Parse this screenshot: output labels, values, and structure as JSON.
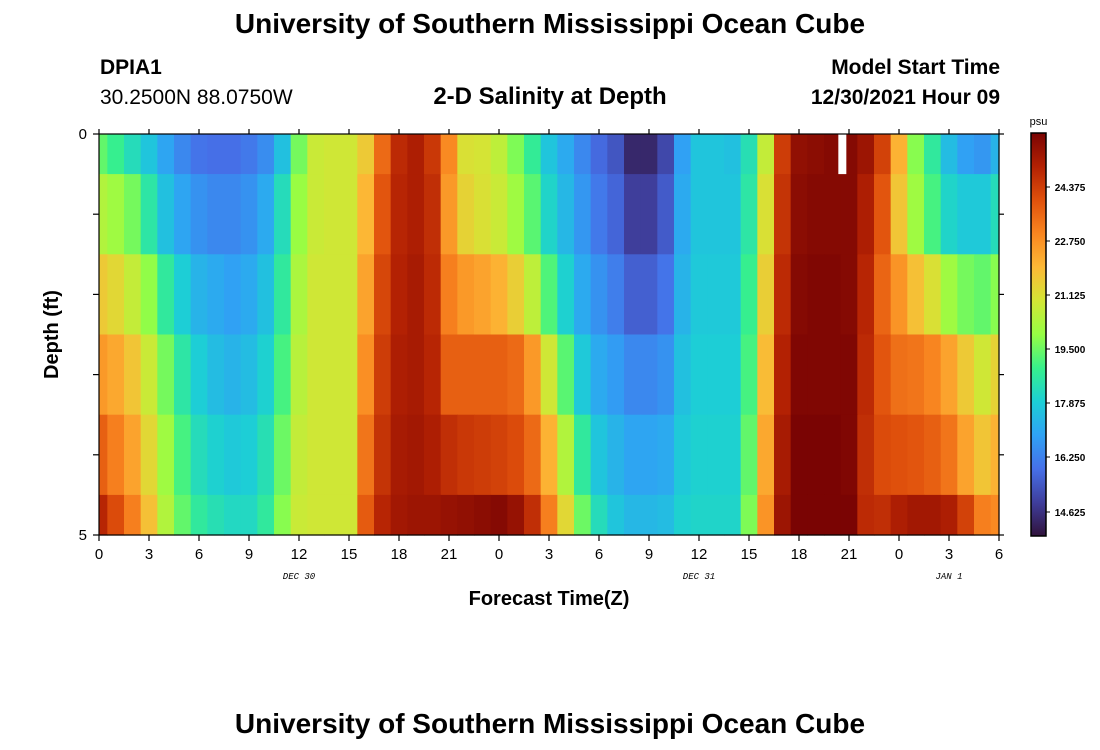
{
  "header": {
    "title": "University of Southern Mississippi Ocean Cube",
    "station_id": "DPIA1",
    "coords": "30.2500N  88.0750W",
    "model_start_label": "Model Start Time",
    "model_start_value": "12/30/2021 Hour 09"
  },
  "footer": {
    "title": "University of Southern Mississippi Ocean Cube"
  },
  "chart_data": {
    "type": "heatmap",
    "title": "2-D Salinity at Depth",
    "xlabel": "Forecast Time(Z)",
    "ylabel": "Depth (ft)",
    "x_tick_labels": [
      "0",
      "3",
      "6",
      "9",
      "12",
      "15",
      "18",
      "21",
      "0",
      "3",
      "6",
      "9",
      "12",
      "15",
      "18",
      "21",
      "0",
      "3",
      "6"
    ],
    "date_labels": [
      {
        "text": "DEC 30",
        "at_tick": 4
      },
      {
        "text": "DEC 31",
        "at_tick": 12
      },
      {
        "text": "JAN 1",
        "at_tick": 17
      }
    ],
    "y_tick_labels": [
      "0",
      "5"
    ],
    "ylim": [
      0,
      5
    ],
    "colorbar": {
      "unit": "psu",
      "tick_labels": [
        "24.375",
        "22.750",
        "21.125",
        "19.500",
        "17.875",
        "16.250",
        "14.625"
      ],
      "range": [
        13.8,
        25.9
      ],
      "colors": [
        "#30123b",
        "#3f3e9c",
        "#4670e8",
        "#2fa2f4",
        "#1ccfd5",
        "#37f08c",
        "#96fe44",
        "#d3e635",
        "#fcb936",
        "#f98620",
        "#e0510c",
        "#b32103",
        "#7a0403"
      ]
    },
    "time_hours": [
      0,
      1,
      2,
      3,
      4,
      5,
      6,
      7,
      8,
      9,
      10,
      11,
      12,
      13,
      14,
      15,
      16,
      17,
      18,
      19,
      20,
      21,
      22,
      23,
      24,
      25,
      26,
      27,
      28,
      29,
      30,
      31,
      32,
      33,
      34,
      35,
      36,
      37,
      38,
      39,
      40,
      41,
      42,
      43,
      44,
      45,
      46,
      47,
      48,
      49,
      50,
      51,
      52,
      53,
      54
    ],
    "depth_levels_ft": [
      0.25,
      1.0,
      2.0,
      3.0,
      4.0,
      4.75
    ],
    "values": [
      [
        19.3,
        18.8,
        18.2,
        17.6,
        16.9,
        16.3,
        15.9,
        15.8,
        15.8,
        16.0,
        16.4,
        17.5,
        19.5,
        20.7,
        20.8,
        20.8,
        21.5,
        23.4,
        24.7,
        25.0,
        24.4,
        22.8,
        21.0,
        20.9,
        20.5,
        19.6,
        18.7,
        17.6,
        17.0,
        16.3,
        15.7,
        15.3,
        14.3,
        14.3,
        15.0,
        16.8,
        17.6,
        17.6,
        17.5,
        18.3,
        20.6,
        24.3,
        25.5,
        25.6,
        25.7,
        25.7,
        25.3,
        24.2,
        22.0,
        19.7,
        18.6,
        17.4,
        16.8,
        16.6,
        17.2
      ],
      [
        20.3,
        20.0,
        19.5,
        18.5,
        17.5,
        16.9,
        16.5,
        16.3,
        16.3,
        16.5,
        17.0,
        18.2,
        19.9,
        20.7,
        20.8,
        20.8,
        21.9,
        23.8,
        24.8,
        25.0,
        24.6,
        22.5,
        21.3,
        21.0,
        20.7,
        20.0,
        19.2,
        18.0,
        17.3,
        16.6,
        16.0,
        15.6,
        14.8,
        14.8,
        15.4,
        17.0,
        17.6,
        17.6,
        17.6,
        18.5,
        21.0,
        24.5,
        25.6,
        25.7,
        25.7,
        25.7,
        25.0,
        23.8,
        21.6,
        20.0,
        19.0,
        18.0,
        17.7,
        17.7,
        18.2
      ],
      [
        21.5,
        21.2,
        20.6,
        19.8,
        18.6,
        17.8,
        17.2,
        17.0,
        16.8,
        17.0,
        17.5,
        18.6,
        20.2,
        20.8,
        20.8,
        20.8,
        22.3,
        24.1,
        24.9,
        25.1,
        24.7,
        23.0,
        22.5,
        22.3,
        22.0,
        21.4,
        20.5,
        19.1,
        17.9,
        17.0,
        16.5,
        16.1,
        15.5,
        15.5,
        15.9,
        17.2,
        17.7,
        17.7,
        17.7,
        18.8,
        21.4,
        24.7,
        25.7,
        25.8,
        25.8,
        25.7,
        24.8,
        23.5,
        22.6,
        21.7,
        21.0,
        20.0,
        19.5,
        19.3,
        19.7
      ],
      [
        22.5,
        22.2,
        21.6,
        20.7,
        19.5,
        18.5,
        17.8,
        17.4,
        17.2,
        17.4,
        17.9,
        19.0,
        20.4,
        20.8,
        20.8,
        20.8,
        22.7,
        24.3,
        25.0,
        25.1,
        24.8,
        23.6,
        23.6,
        23.6,
        23.6,
        23.4,
        22.5,
        20.8,
        19.2,
        17.7,
        17.0,
        16.7,
        16.3,
        16.3,
        16.5,
        17.5,
        17.8,
        17.8,
        17.8,
        19.0,
        21.8,
        24.9,
        25.8,
        25.8,
        25.8,
        25.8,
        24.7,
        23.8,
        23.3,
        23.2,
        22.9,
        22.3,
        21.5,
        20.8,
        21.3
      ],
      [
        23.6,
        23.0,
        22.3,
        21.2,
        20.0,
        19.0,
        18.2,
        17.9,
        17.7,
        17.8,
        18.3,
        19.4,
        20.6,
        20.8,
        20.8,
        20.8,
        23.2,
        24.5,
        25.1,
        25.2,
        25.0,
        24.6,
        24.4,
        24.3,
        24.2,
        24.0,
        23.4,
        22.0,
        20.3,
        18.6,
        17.6,
        17.2,
        16.9,
        16.9,
        17.0,
        17.7,
        17.9,
        17.9,
        17.9,
        19.3,
        22.2,
        25.1,
        25.9,
        25.9,
        25.9,
        25.8,
        24.6,
        24.0,
        23.9,
        23.8,
        23.6,
        23.2,
        22.3,
        21.6,
        22.0
      ],
      [
        24.8,
        24.0,
        23.0,
        21.7,
        20.3,
        19.3,
        18.6,
        18.3,
        18.1,
        18.1,
        18.6,
        19.7,
        20.7,
        20.8,
        20.8,
        20.8,
        23.7,
        24.8,
        25.2,
        25.3,
        25.3,
        25.4,
        25.5,
        25.6,
        25.7,
        25.4,
        24.6,
        23.0,
        21.2,
        19.4,
        18.2,
        17.6,
        17.3,
        17.3,
        17.4,
        17.9,
        18.0,
        18.0,
        18.0,
        19.6,
        22.6,
        25.3,
        25.9,
        25.9,
        25.9,
        25.9,
        24.7,
        24.6,
        25.0,
        25.2,
        25.2,
        25.0,
        24.2,
        23.0,
        22.8
      ]
    ],
    "missing_marker": {
      "hour": 44.6,
      "depth_from": 0,
      "depth_to": 0.5
    }
  }
}
